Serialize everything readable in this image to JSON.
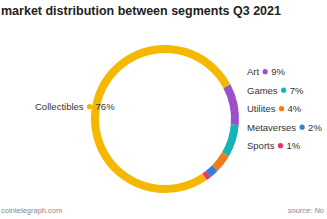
{
  "chart_data": {
    "type": "pie",
    "title": "market distribution between segments Q3 2021",
    "categories": [
      "Collectibles",
      "Art",
      "Games",
      "Utilites",
      "Metaverses",
      "Sports"
    ],
    "values": [
      76,
      9,
      7,
      4,
      2,
      1
    ],
    "value_labels": [
      "76%",
      "9%",
      "7%",
      "4%",
      "2%",
      "1%"
    ],
    "colors": [
      "#f5b800",
      "#9b4fc9",
      "#17b3b8",
      "#f07c1b",
      "#3a7bd5",
      "#e8336e"
    ],
    "data_labels": true,
    "credit": "cointelegraph.com",
    "source": "source: No"
  }
}
